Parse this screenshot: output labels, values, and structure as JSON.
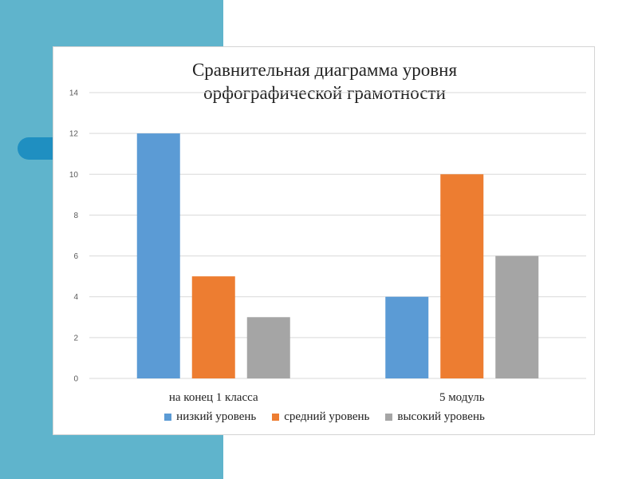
{
  "colors": {
    "background_panel": "#5fb4cc",
    "accent_pill": "#1f8fc1",
    "gridline": "#d9d9d9"
  },
  "chart_data": {
    "type": "bar",
    "title": "Сравнительная диаграмма уровня\nорфографической грамотности",
    "categories": [
      "на конец 1 класса",
      "5 модуль"
    ],
    "series": [
      {
        "name": "низкий уровень",
        "values": [
          12,
          4
        ],
        "color": "#5b9bd5"
      },
      {
        "name": "средний уровень",
        "values": [
          5,
          10
        ],
        "color": "#ed7d31"
      },
      {
        "name": "высокий уровень",
        "values": [
          3,
          6
        ],
        "color": "#a5a5a5"
      }
    ],
    "ylim": [
      0,
      14
    ],
    "yticks": [
      0,
      2,
      4,
      6,
      8,
      10,
      12,
      14
    ],
    "grid": true,
    "legend_position": "bottom"
  }
}
